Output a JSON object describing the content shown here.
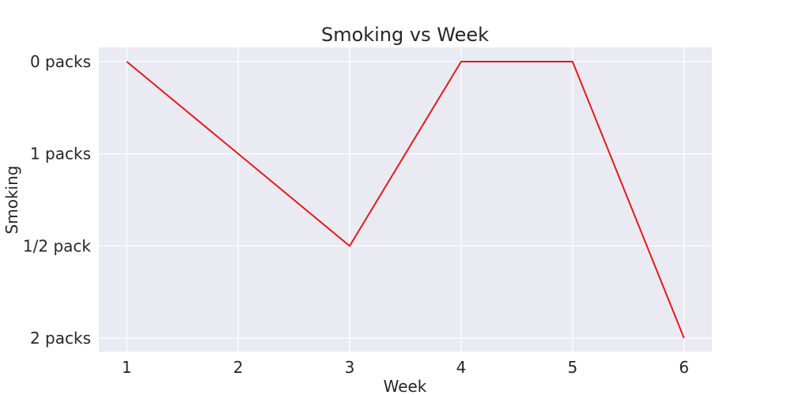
{
  "chart_data": {
    "type": "line",
    "title": "Smoking vs Week",
    "xlabel": "Week",
    "ylabel": "Smoking",
    "x": [
      1,
      2,
      3,
      4,
      5,
      6
    ],
    "y_categories": [
      "0 packs",
      "1 packs",
      "1/2 pack",
      "2 packs"
    ],
    "series": [
      {
        "values": [
          "0 packs",
          "1 packs",
          "1/2 pack",
          "0 packs",
          "0 packs",
          "2 packs"
        ],
        "color": "#e31a1c"
      }
    ],
    "grid": true
  }
}
